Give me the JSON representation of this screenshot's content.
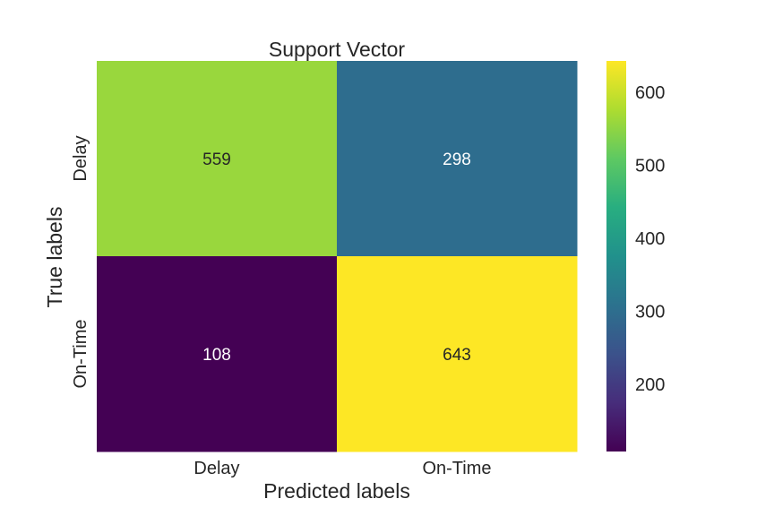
{
  "chart_data": {
    "type": "heatmap",
    "title": "Support Vector",
    "xlabel": "Predicted labels",
    "ylabel": "True labels",
    "x_categories": [
      "Delay",
      "On-Time"
    ],
    "y_categories": [
      "Delay",
      "On-Time"
    ],
    "values": [
      [
        559,
        298
      ],
      [
        108,
        643
      ]
    ],
    "colormap": "viridis",
    "colorbar": {
      "range": [
        108,
        643
      ],
      "ticks": [
        200,
        300,
        400,
        500,
        600
      ],
      "tick_labels": [
        "200",
        "300",
        "400",
        "500",
        "600"
      ]
    },
    "annotation_colors": {
      "light_bg": "#262626",
      "dark_bg": "#ffffff"
    }
  }
}
